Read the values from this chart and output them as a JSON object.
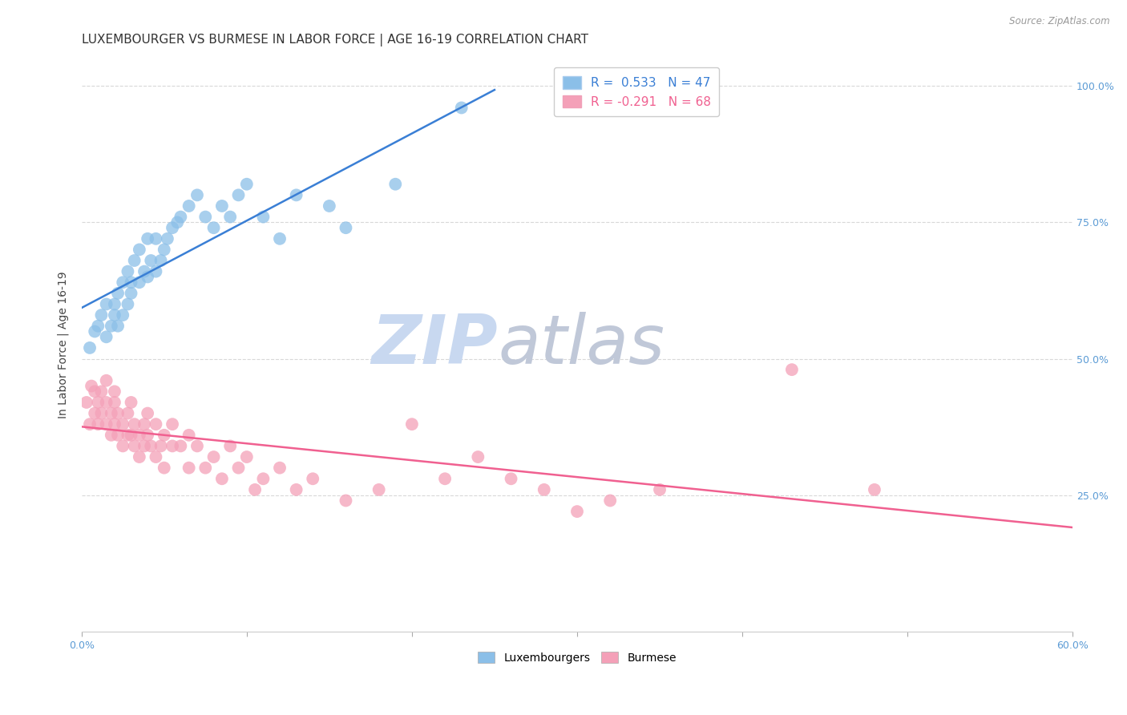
{
  "title": "LUXEMBOURGER VS BURMESE IN LABOR FORCE | AGE 16-19 CORRELATION CHART",
  "source": "Source: ZipAtlas.com",
  "ylabel": "In Labor Force | Age 16-19",
  "xlim": [
    0.0,
    0.6
  ],
  "ylim": [
    0.0,
    1.05
  ],
  "xticks": [
    0.0,
    0.1,
    0.2,
    0.3,
    0.4,
    0.5,
    0.6
  ],
  "background_color": "#ffffff",
  "grid_color": "#d8d8d8",
  "blue_color": "#8bbfe8",
  "pink_color": "#f4a0b8",
  "blue_line_color": "#3a7fd5",
  "pink_line_color": "#f06090",
  "label_color": "#5b9bd5",
  "R_blue": 0.533,
  "N_blue": 47,
  "R_pink": -0.291,
  "N_pink": 68,
  "blue_points_x": [
    0.005,
    0.008,
    0.01,
    0.012,
    0.015,
    0.015,
    0.018,
    0.02,
    0.02,
    0.022,
    0.022,
    0.025,
    0.025,
    0.028,
    0.028,
    0.03,
    0.03,
    0.032,
    0.035,
    0.035,
    0.038,
    0.04,
    0.04,
    0.042,
    0.045,
    0.045,
    0.048,
    0.05,
    0.052,
    0.055,
    0.058,
    0.06,
    0.065,
    0.07,
    0.075,
    0.08,
    0.085,
    0.09,
    0.095,
    0.1,
    0.11,
    0.12,
    0.13,
    0.15,
    0.16,
    0.19,
    0.23
  ],
  "blue_points_y": [
    0.52,
    0.55,
    0.56,
    0.58,
    0.54,
    0.6,
    0.56,
    0.58,
    0.6,
    0.56,
    0.62,
    0.58,
    0.64,
    0.6,
    0.66,
    0.62,
    0.64,
    0.68,
    0.64,
    0.7,
    0.66,
    0.65,
    0.72,
    0.68,
    0.66,
    0.72,
    0.68,
    0.7,
    0.72,
    0.74,
    0.75,
    0.76,
    0.78,
    0.8,
    0.76,
    0.74,
    0.78,
    0.76,
    0.8,
    0.82,
    0.76,
    0.72,
    0.8,
    0.78,
    0.74,
    0.82,
    0.96
  ],
  "pink_points_x": [
    0.003,
    0.005,
    0.006,
    0.008,
    0.008,
    0.01,
    0.01,
    0.012,
    0.012,
    0.015,
    0.015,
    0.015,
    0.018,
    0.018,
    0.02,
    0.02,
    0.02,
    0.022,
    0.022,
    0.025,
    0.025,
    0.028,
    0.028,
    0.03,
    0.03,
    0.032,
    0.032,
    0.035,
    0.035,
    0.038,
    0.038,
    0.04,
    0.04,
    0.042,
    0.045,
    0.045,
    0.048,
    0.05,
    0.05,
    0.055,
    0.055,
    0.06,
    0.065,
    0.065,
    0.07,
    0.075,
    0.08,
    0.085,
    0.09,
    0.095,
    0.1,
    0.105,
    0.11,
    0.12,
    0.13,
    0.14,
    0.16,
    0.18,
    0.2,
    0.22,
    0.24,
    0.26,
    0.28,
    0.3,
    0.32,
    0.35,
    0.43,
    0.48
  ],
  "pink_points_y": [
    0.42,
    0.38,
    0.45,
    0.4,
    0.44,
    0.42,
    0.38,
    0.44,
    0.4,
    0.46,
    0.38,
    0.42,
    0.4,
    0.36,
    0.44,
    0.38,
    0.42,
    0.4,
    0.36,
    0.38,
    0.34,
    0.4,
    0.36,
    0.42,
    0.36,
    0.38,
    0.34,
    0.36,
    0.32,
    0.38,
    0.34,
    0.36,
    0.4,
    0.34,
    0.38,
    0.32,
    0.34,
    0.36,
    0.3,
    0.34,
    0.38,
    0.34,
    0.36,
    0.3,
    0.34,
    0.3,
    0.32,
    0.28,
    0.34,
    0.3,
    0.32,
    0.26,
    0.28,
    0.3,
    0.26,
    0.28,
    0.24,
    0.26,
    0.38,
    0.28,
    0.32,
    0.28,
    0.26,
    0.22,
    0.24,
    0.26,
    0.48,
    0.26
  ],
  "watermark_zip": "ZIP",
  "watermark_atlas": "atlas",
  "watermark_color": "#c8d8f0",
  "title_fontsize": 11,
  "axis_label_fontsize": 10,
  "tick_fontsize": 9,
  "legend_fontsize": 11
}
